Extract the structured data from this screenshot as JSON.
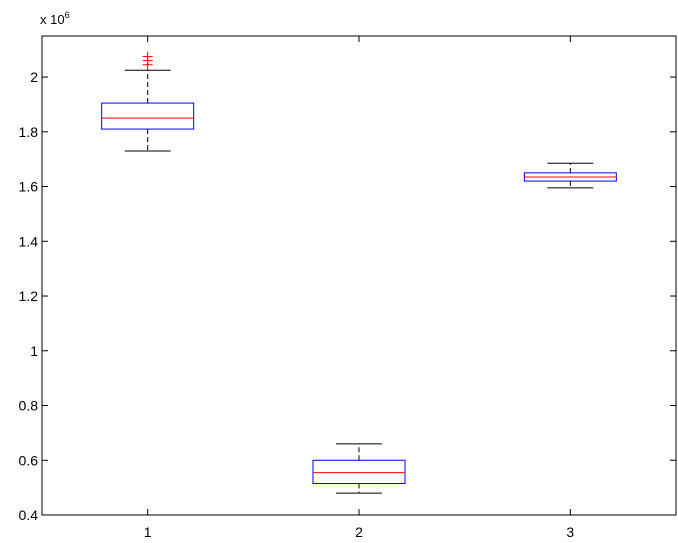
{
  "chart_data": {
    "type": "boxplot",
    "title": "",
    "xlabel": "",
    "ylabel": "",
    "y_scale_label": {
      "base": "x 10",
      "exponent": "6"
    },
    "categories": [
      "1",
      "2",
      "3"
    ],
    "ylim": [
      0.4,
      2.15
    ],
    "yticks": [
      0.4,
      0.6,
      0.8,
      1.0,
      1.2,
      1.4,
      1.6,
      1.8,
      2.0
    ],
    "ytick_labels": [
      "0.4",
      "0.6",
      "0.8",
      "1",
      "1.2",
      "1.4",
      "1.6",
      "1.8",
      "2"
    ],
    "grid": false,
    "boxes": [
      {
        "category": "1",
        "whisker_low": 1.73,
        "q1": 1.81,
        "median": 1.85,
        "q3": 1.905,
        "whisker_high": 2.025,
        "outliers": [
          2.045,
          2.06,
          2.075
        ]
      },
      {
        "category": "2",
        "whisker_low": 0.48,
        "q1": 0.515,
        "median": 0.555,
        "q3": 0.6,
        "whisker_high": 0.66,
        "outliers": []
      },
      {
        "category": "3",
        "whisker_low": 1.595,
        "q1": 1.62,
        "median": 1.635,
        "q3": 1.65,
        "whisker_high": 1.685,
        "outliers": []
      }
    ],
    "colors": {
      "box": "#0000ff",
      "median": "#ff0000",
      "whisker": "#000000",
      "outlier": "#ff0000"
    }
  }
}
